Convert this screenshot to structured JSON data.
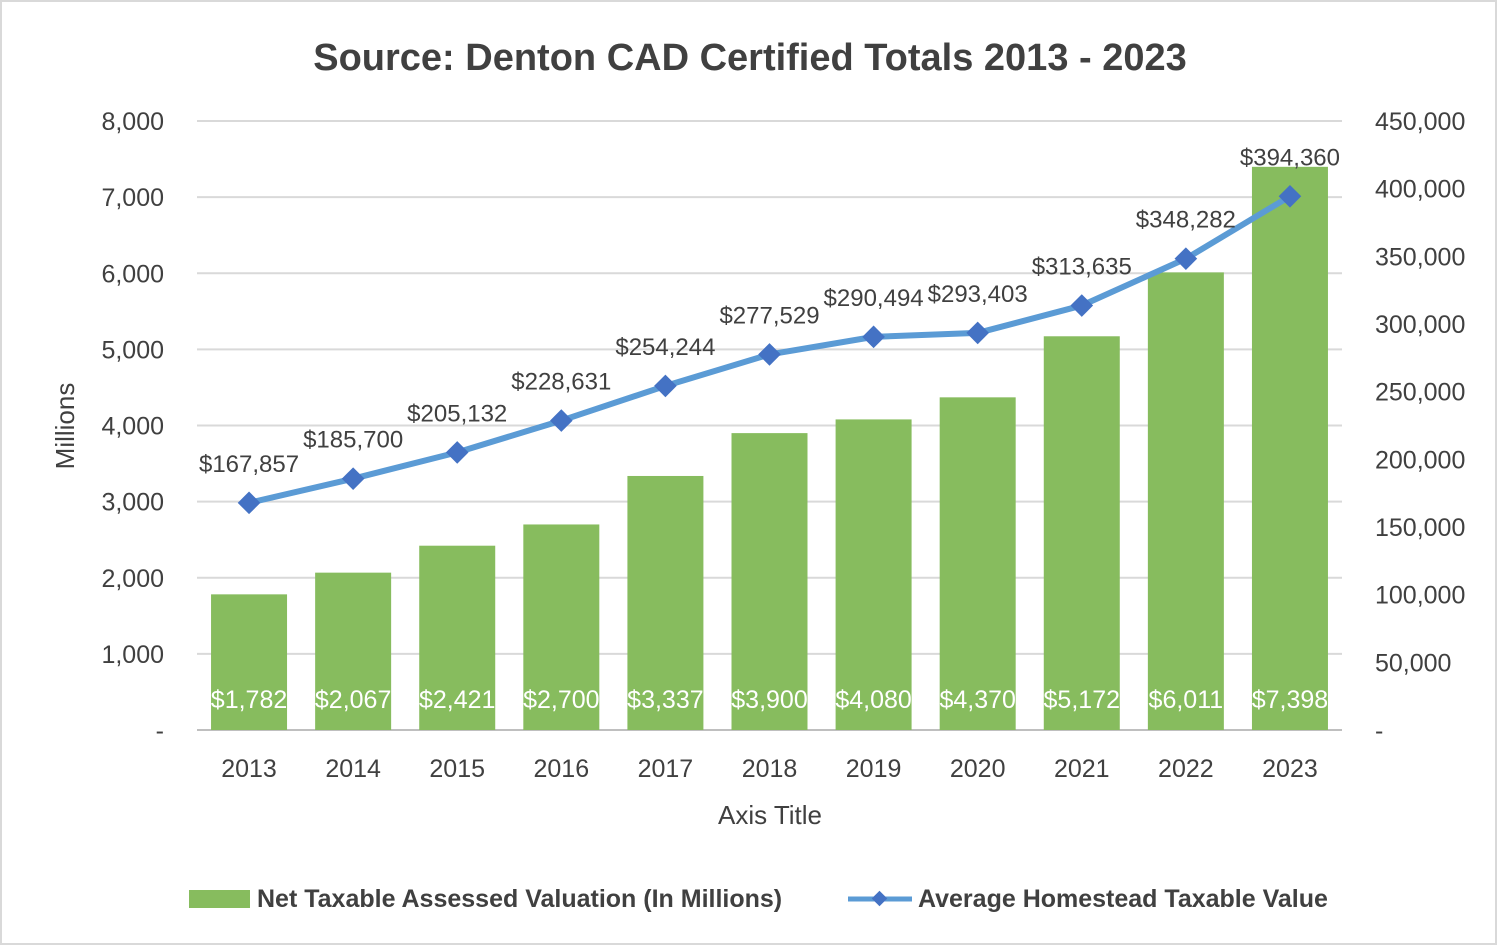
{
  "chart_data": {
    "type": "bar",
    "title": "Source: Denton CAD Certified Totals 2013 - 2023",
    "xlabel": "Axis Title",
    "ylabel": "Millions",
    "ylim": [
      0,
      8000
    ],
    "y2lim": [
      0,
      450000
    ],
    "categories": [
      "2013",
      "2014",
      "2015",
      "2016",
      "2017",
      "2018",
      "2019",
      "2020",
      "2021",
      "2022",
      "2023"
    ],
    "y_ticks": [
      "-",
      "1,000",
      "2,000",
      "3,000",
      "4,000",
      "5,000",
      "6,000",
      "7,000",
      "8,000"
    ],
    "y2_ticks": [
      "-",
      "50,000",
      "100,000",
      "150,000",
      "200,000",
      "250,000",
      "300,000",
      "350,000",
      "400,000",
      "450,000"
    ],
    "grid": true,
    "legend_position": "bottom",
    "series": [
      {
        "name": "Net Taxable Assessed Valuation (In Millions)",
        "type": "bar",
        "axis": "left",
        "color": "#87bc5e",
        "values": [
          1782,
          2067,
          2421,
          2700,
          3337,
          3900,
          4080,
          4370,
          5172,
          6011,
          7398
        ],
        "labels": [
          "$1,782",
          "$2,067",
          "$2,421",
          "$2,700",
          "$3,337",
          "$3,900",
          "$4,080",
          "$4,370",
          "$5,172",
          "$6,011",
          "$7,398"
        ]
      },
      {
        "name": "Average Homestead Taxable Value",
        "type": "line",
        "axis": "right",
        "color": "#5b9bd5",
        "marker_color": "#4472c4",
        "values": [
          167857,
          185700,
          205132,
          228631,
          254244,
          277529,
          290494,
          293403,
          313635,
          348282,
          394360
        ],
        "labels": [
          "$167,857",
          "$185,700",
          "$205,132",
          "$228,631",
          "$254,244",
          "$277,529",
          "$290,494",
          "$293,403",
          "$313,635",
          "$348,282",
          "$394,360"
        ]
      }
    ]
  }
}
